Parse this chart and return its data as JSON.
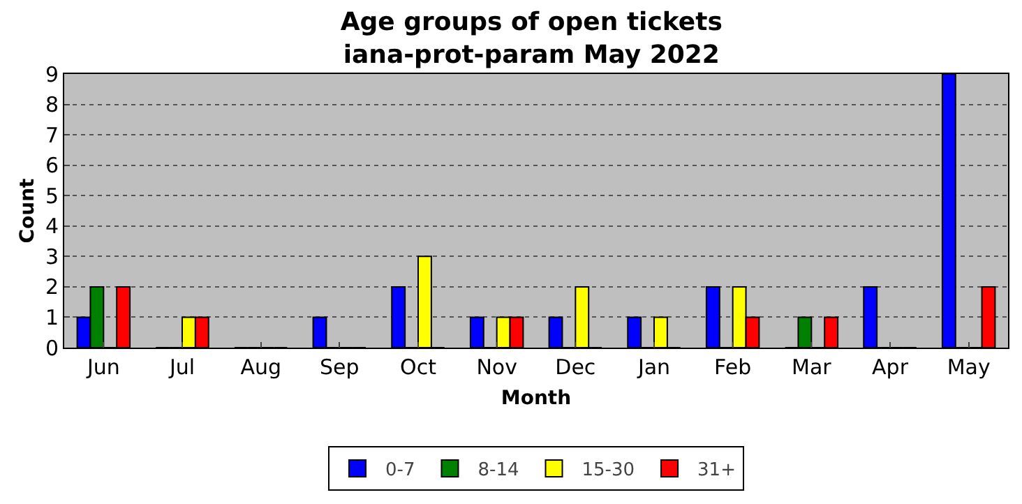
{
  "chart_data": {
    "type": "bar",
    "title": "Age groups of open tickets\niana-prot-param May 2022",
    "xlabel": "Month",
    "ylabel": "Count",
    "categories": [
      "Jun",
      "Jul",
      "Aug",
      "Sep",
      "Oct",
      "Nov",
      "Dec",
      "Jan",
      "Feb",
      "Mar",
      "Apr",
      "May"
    ],
    "series": [
      {
        "name": "0-7",
        "color": "#0000ff",
        "values": [
          1,
          0,
          0,
          1,
          2,
          1,
          1,
          1,
          2,
          0,
          2,
          9
        ]
      },
      {
        "name": "8-14",
        "color": "#008000",
        "values": [
          2,
          0,
          0,
          0,
          0,
          0,
          0,
          0,
          0,
          1,
          0,
          0
        ]
      },
      {
        "name": "15-30",
        "color": "#ffff00",
        "values": [
          0,
          1,
          0,
          0,
          3,
          1,
          2,
          1,
          2,
          0,
          0,
          0
        ]
      },
      {
        "name": "31+",
        "color": "#ff0000",
        "values": [
          2,
          1,
          0,
          0,
          0,
          1,
          0,
          0,
          1,
          1,
          0,
          2
        ]
      }
    ],
    "ylim": [
      0,
      9
    ],
    "yticks": [
      0,
      1,
      2,
      3,
      4,
      5,
      6,
      7,
      8,
      9
    ],
    "grid": "y",
    "legend": "bottom"
  }
}
